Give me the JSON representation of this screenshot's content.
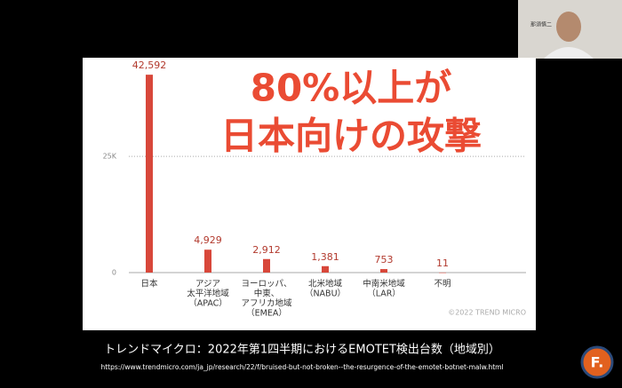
{
  "chart_data": {
    "type": "bar",
    "annotation": [
      "80%以上が",
      "日本向けの攻撃"
    ],
    "categories": [
      [
        "日本"
      ],
      [
        "アジア",
        "太平洋地域",
        "（APAC）"
      ],
      [
        "ヨーロッパ、",
        "中東、",
        "アフリカ地域",
        "（EMEA）"
      ],
      [
        "北米地域",
        "（NABU）"
      ],
      [
        "中南米地域",
        "（LAR）"
      ],
      [
        "不明"
      ]
    ],
    "values": [
      42592,
      4929,
      2912,
      1381,
      753,
      11
    ],
    "value_labels": [
      "42,592",
      "4,929",
      "2,912",
      "1,381",
      "753",
      "11"
    ],
    "color": "#d8473a",
    "ylim": [
      0,
      43000
    ],
    "yticks": [
      0,
      {
        "value": 25000,
        "label": "25K"
      }
    ],
    "grid": true,
    "copyright": "©2022 TREND MICRO"
  },
  "caption": "トレンドマイクロ：2022年第1四半期におけるEMOTET検出台数（地域別）",
  "source_url": "https://www.trendmicro.com/ja_jp/research/22/f/bruised-but-not-broken--the-resurgence-of-the-emotet-botnet-malw.html",
  "speaker_name": "那須慎二",
  "logo": "F."
}
